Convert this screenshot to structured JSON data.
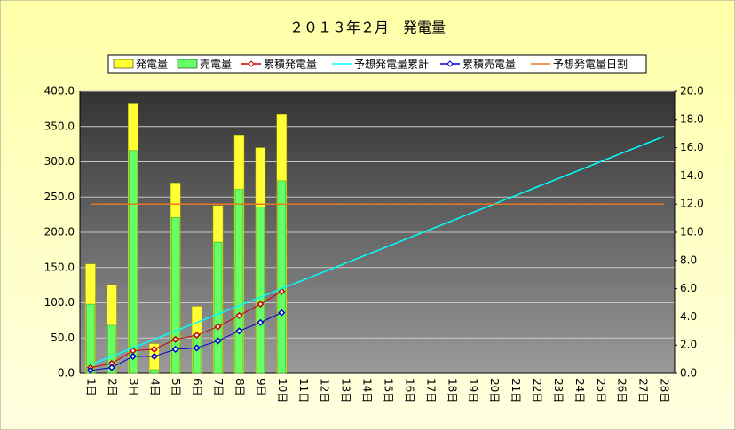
{
  "chart_data": {
    "type": "bar",
    "title": "２０１３年２月　発電量",
    "categories": [
      "1日",
      "2日",
      "3日",
      "4日",
      "5日",
      "6日",
      "7日",
      "8日",
      "9日",
      "10日",
      "11日",
      "12日",
      "13日",
      "14日",
      "15日",
      "16日",
      "17日",
      "18日",
      "19日",
      "20日",
      "21日",
      "22日",
      "23日",
      "24日",
      "25日",
      "26日",
      "27日",
      "28日"
    ],
    "series": [
      {
        "name": "発電量",
        "type": "bar",
        "color": "#ffff33",
        "values": [
          155,
          125,
          383,
          42,
          270,
          95,
          238,
          338,
          320,
          367,
          null,
          null,
          null,
          null,
          null,
          null,
          null,
          null,
          null,
          null,
          null,
          null,
          null,
          null,
          null,
          null,
          null,
          null
        ]
      },
      {
        "name": "売電量",
        "type": "bar",
        "color": "#66ff66",
        "values": [
          98,
          68,
          316,
          5,
          221,
          55,
          186,
          261,
          236,
          273,
          null,
          null,
          null,
          null,
          null,
          null,
          null,
          null,
          null,
          null,
          null,
          null,
          null,
          null,
          null,
          null,
          null,
          null
        ]
      },
      {
        "name": "累積発電量",
        "type": "line",
        "axis": "y2",
        "color": "#cc0000",
        "marker": true,
        "values": [
          0.4,
          0.7,
          1.6,
          1.7,
          2.4,
          2.7,
          3.3,
          4.1,
          4.9,
          5.8,
          null,
          null,
          null,
          null,
          null,
          null,
          null,
          null,
          null,
          null,
          null,
          null,
          null,
          null,
          null,
          null,
          null,
          null
        ]
      },
      {
        "name": "予想発電量累計",
        "type": "line",
        "axis": "y2",
        "color": "#00ffff",
        "values": [
          0.6,
          1.2,
          1.8,
          2.4,
          3.0,
          3.6,
          4.2,
          4.8,
          5.4,
          6.0,
          6.6,
          7.2,
          7.8,
          8.4,
          9.0,
          9.6,
          10.2,
          10.8,
          11.4,
          12.0,
          12.6,
          13.2,
          13.8,
          14.4,
          15.0,
          15.6,
          16.2,
          16.8
        ]
      },
      {
        "name": "累積売電量",
        "type": "line",
        "axis": "y2",
        "color": "#0000cc",
        "marker": true,
        "values": [
          0.2,
          0.4,
          1.2,
          1.2,
          1.7,
          1.8,
          2.3,
          3.0,
          3.6,
          4.3,
          null,
          null,
          null,
          null,
          null,
          null,
          null,
          null,
          null,
          null,
          null,
          null,
          null,
          null,
          null,
          null,
          null,
          null
        ]
      },
      {
        "name": "予想発電量日割",
        "type": "line",
        "axis": "y2",
        "color": "#e87722",
        "values": [
          12,
          12,
          12,
          12,
          12,
          12,
          12,
          12,
          12,
          12,
          12,
          12,
          12,
          12,
          12,
          12,
          12,
          12,
          12,
          12,
          12,
          12,
          12,
          12,
          12,
          12,
          12,
          12
        ]
      }
    ],
    "ylim": [
      0,
      400
    ],
    "yticks": [
      {
        "value": 0,
        "label": "0.0"
      },
      {
        "value": 50,
        "label": "50.0"
      },
      {
        "value": 100,
        "label": "100.0"
      },
      {
        "value": 150,
        "label": "150.0"
      },
      {
        "value": 200,
        "label": "200.0"
      },
      {
        "value": 250,
        "label": "250.0"
      },
      {
        "value": 300,
        "label": "300.0"
      },
      {
        "value": 350,
        "label": "350.0"
      },
      {
        "value": 400,
        "label": "400.0"
      }
    ],
    "y2lim": [
      0,
      20
    ],
    "y2ticks": [
      {
        "value": 0,
        "label": "0.0"
      },
      {
        "value": 2,
        "label": "2.0"
      },
      {
        "value": 4,
        "label": "4.0"
      },
      {
        "value": 6,
        "label": "6.0"
      },
      {
        "value": 8,
        "label": "8.0"
      },
      {
        "value": 10,
        "label": "10.0"
      },
      {
        "value": 12,
        "label": "12.0"
      },
      {
        "value": 14,
        "label": "14.0"
      },
      {
        "value": 16,
        "label": "16.0"
      },
      {
        "value": 18,
        "label": "18.0"
      },
      {
        "value": 20,
        "label": "20.0"
      }
    ],
    "grid": true
  }
}
